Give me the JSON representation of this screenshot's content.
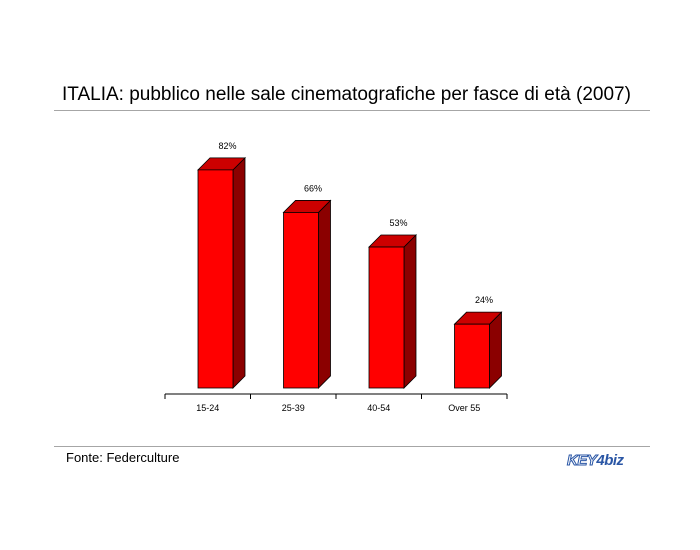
{
  "title": "ITALIA: pubblico nelle sale cinematografiche per fasce di età (2007)",
  "source": "Fonte: Federculture",
  "logo": {
    "left": "KEY",
    "right": "biz"
  },
  "chart_data": {
    "type": "bar",
    "title": "",
    "xlabel": "",
    "ylabel": "",
    "categories": [
      "15-24",
      "25-39",
      "40-54",
      "Over 55"
    ],
    "values": [
      82,
      66,
      53,
      24
    ],
    "value_labels": [
      "82%",
      "66%",
      "53%",
      "24%"
    ],
    "ylim": [
      0,
      100
    ],
    "grid": false,
    "legend": "none",
    "bar_color": "#ff0000",
    "bar_side_color": "#8b0000",
    "bar_top_color": "#cc0000"
  }
}
